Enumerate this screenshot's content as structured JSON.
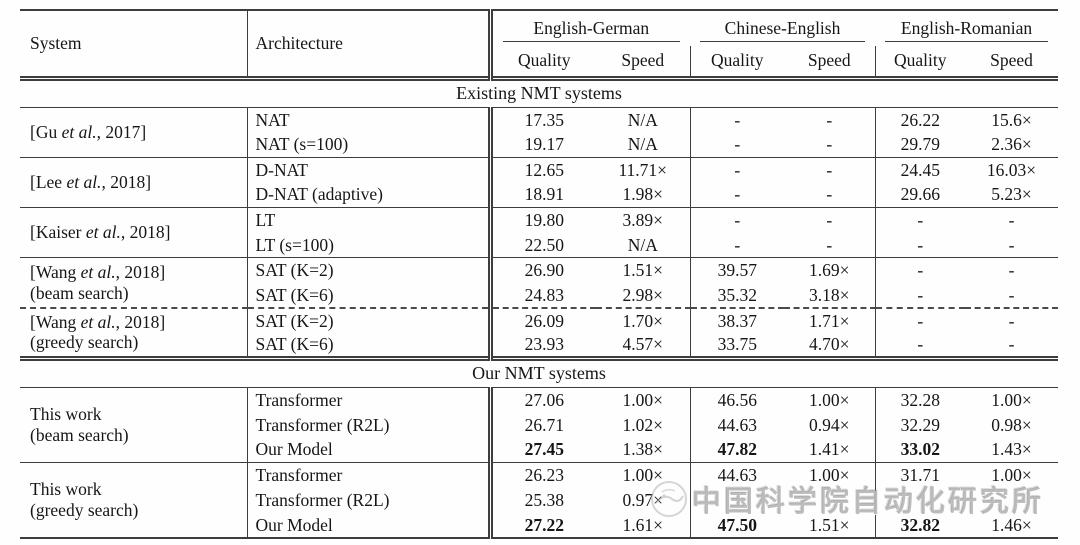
{
  "table": {
    "columns": {
      "system": "System",
      "architecture": "Architecture"
    },
    "groups": [
      {
        "label": "English-German",
        "quality": "Quality",
        "speed": "Speed"
      },
      {
        "label": "Chinese-English",
        "quality": "Quality",
        "speed": "Speed"
      },
      {
        "label": "English-Romanian",
        "quality": "Quality",
        "speed": "Speed"
      }
    ],
    "sections": [
      {
        "title": "Existing NMT systems",
        "groups": [
          {
            "system": {
              "pre": "[Gu ",
              "em": "et al.",
              "post": ", 2017]",
              "line2": ""
            },
            "divider": "solid",
            "rows": [
              {
                "arch": "NAT",
                "values": [
                  "17.35",
                  "N/A",
                  "-",
                  "-",
                  "26.22",
                  "15.6×"
                ],
                "bold": []
              },
              {
                "arch": "NAT (s=100)",
                "values": [
                  "19.17",
                  "N/A",
                  "-",
                  "-",
                  "29.79",
                  "2.36×"
                ],
                "bold": []
              }
            ]
          },
          {
            "system": {
              "pre": "[Lee ",
              "em": "et al.",
              "post": ", 2018]",
              "line2": ""
            },
            "divider": "solid",
            "rows": [
              {
                "arch": "D-NAT",
                "values": [
                  "12.65",
                  "11.71×",
                  "-",
                  "-",
                  "24.45",
                  "16.03×"
                ],
                "bold": []
              },
              {
                "arch": "D-NAT (adaptive)",
                "values": [
                  "18.91",
                  "1.98×",
                  "-",
                  "-",
                  "29.66",
                  "5.23×"
                ],
                "bold": []
              }
            ]
          },
          {
            "system": {
              "pre": "[Kaiser ",
              "em": "et al.",
              "post": ", 2018]",
              "line2": ""
            },
            "divider": "solid",
            "rows": [
              {
                "arch": "LT",
                "values": [
                  "19.80",
                  "3.89×",
                  "-",
                  "-",
                  "-",
                  "-"
                ],
                "bold": []
              },
              {
                "arch": "LT (s=100)",
                "values": [
                  "22.50",
                  "N/A",
                  "-",
                  "-",
                  "-",
                  "-"
                ],
                "bold": []
              }
            ]
          },
          {
            "system": {
              "pre": "[Wang ",
              "em": "et al.",
              "post": ", 2018]",
              "line2": "(beam search)"
            },
            "divider": "solid",
            "rows": [
              {
                "arch": "SAT (K=2)",
                "values": [
                  "26.90",
                  "1.51×",
                  "39.57",
                  "1.69×",
                  "-",
                  "-"
                ],
                "bold": []
              },
              {
                "arch": "SAT (K=6)",
                "values": [
                  "24.83",
                  "2.98×",
                  "35.32",
                  "3.18×",
                  "-",
                  "-"
                ],
                "bold": []
              }
            ]
          },
          {
            "system": {
              "pre": "[Wang ",
              "em": "et al.",
              "post": ", 2018]",
              "line2": "(greedy search)"
            },
            "divider": "dashed",
            "rows": [
              {
                "arch": "SAT (K=2)",
                "values": [
                  "26.09",
                  "1.70×",
                  "38.37",
                  "1.71×",
                  "-",
                  "-"
                ],
                "bold": []
              },
              {
                "arch": "SAT (K=6)",
                "values": [
                  "23.93",
                  "4.57×",
                  "33.75",
                  "4.70×",
                  "-",
                  "-"
                ],
                "bold": []
              }
            ]
          }
        ]
      },
      {
        "title": "Our NMT systems",
        "groups": [
          {
            "system": {
              "pre": "This work",
              "em": "",
              "post": "",
              "line2": "(beam search)"
            },
            "divider": "solid",
            "rows": [
              {
                "arch": "Transformer",
                "values": [
                  "27.06",
                  "1.00×",
                  "46.56",
                  "1.00×",
                  "32.28",
                  "1.00×"
                ],
                "bold": []
              },
              {
                "arch": "Transformer (R2L)",
                "values": [
                  "26.71",
                  "1.02×",
                  "44.63",
                  "0.94×",
                  "32.29",
                  "0.98×"
                ],
                "bold": []
              },
              {
                "arch": "Our Model",
                "values": [
                  "27.45",
                  "1.38×",
                  "47.82",
                  "1.41×",
                  "33.02",
                  "1.43×"
                ],
                "bold": [
                  0,
                  2,
                  4
                ]
              }
            ]
          },
          {
            "system": {
              "pre": "This work",
              "em": "",
              "post": "",
              "line2": "(greedy search)"
            },
            "divider": "solid",
            "rows": [
              {
                "arch": "Transformer",
                "values": [
                  "26.23",
                  "1.00×",
                  "44.63",
                  "1.00×",
                  "31.71",
                  "1.00×"
                ],
                "bold": []
              },
              {
                "arch": "Transformer (R2L)",
                "values": [
                  "25.38",
                  "0.97×",
                  "",
                  "",
                  "",
                  ""
                ],
                "bold": []
              },
              {
                "arch": "Our Model",
                "values": [
                  "27.22",
                  "1.61×",
                  "47.50",
                  "1.51×",
                  "32.82",
                  "1.46×"
                ],
                "bold": [
                  0,
                  2,
                  4
                ]
              }
            ]
          }
        ]
      }
    ]
  },
  "watermark": {
    "text": "中国科学院自动化研究所"
  }
}
